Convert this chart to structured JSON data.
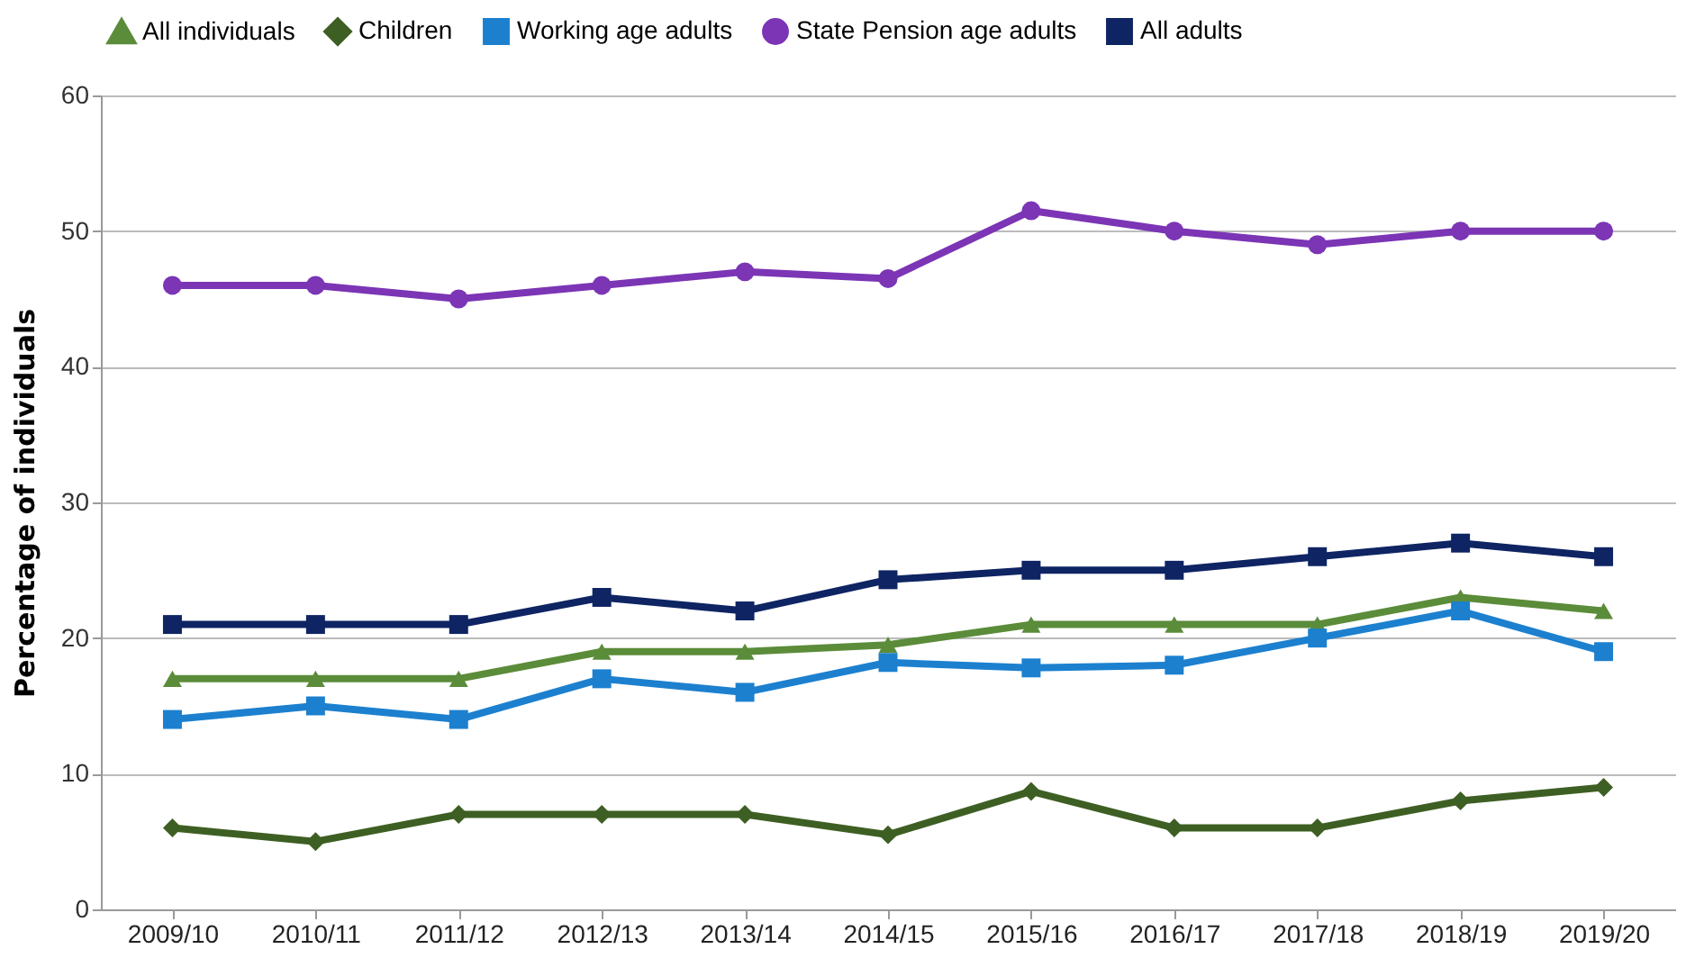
{
  "chart_data": {
    "type": "line",
    "ylabel": "Percentage of individuals",
    "categories": [
      "2009/10",
      "2010/11",
      "2011/12",
      "2012/13",
      "2013/14",
      "2014/15",
      "2015/16",
      "2016/17",
      "2017/18",
      "2018/19",
      "2019/20"
    ],
    "series": [
      {
        "name": "All individuals",
        "color": "#5b8c3a",
        "marker": "triangle",
        "values": [
          17,
          17,
          17,
          19,
          19,
          19.5,
          21,
          21,
          21,
          23,
          22
        ]
      },
      {
        "name": "Children",
        "color": "#3e5f23",
        "marker": "diamond",
        "values": [
          6,
          5,
          7,
          7,
          7,
          5.5,
          8.7,
          6,
          6,
          8,
          9
        ]
      },
      {
        "name": "Working age adults",
        "color": "#1c80cf",
        "marker": "square",
        "values": [
          14,
          15,
          14,
          17,
          16,
          18.2,
          17.8,
          18,
          20,
          22,
          19
        ]
      },
      {
        "name": "State Pension age adults",
        "color": "#7b35b5",
        "marker": "circle",
        "values": [
          46,
          46,
          45,
          46,
          47,
          46.5,
          51.5,
          50,
          49,
          50,
          50
        ]
      },
      {
        "name": "All adults",
        "color": "#0e2463",
        "marker": "square",
        "values": [
          21,
          21,
          21,
          23,
          22,
          24.3,
          25,
          25,
          26,
          27,
          26
        ]
      }
    ],
    "ylim": [
      0,
      60
    ],
    "yticks": [
      0,
      10,
      20,
      30,
      40,
      50,
      60
    ],
    "grid": "y",
    "legend": "top",
    "line_style": "solid"
  }
}
